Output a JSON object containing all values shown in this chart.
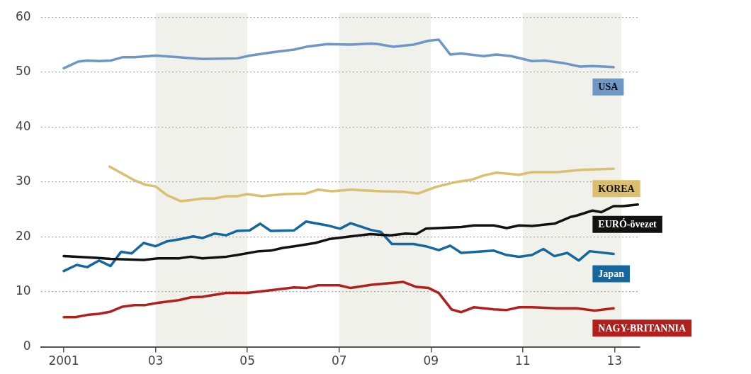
{
  "chart_data": {
    "type": "line",
    "xlim": [
      2000.5,
      2013.55
    ],
    "xticks": [
      2001,
      {
        "value": 2003,
        "label": "03"
      },
      {
        "value": 2005,
        "label": "05"
      },
      {
        "value": 2007,
        "label": "07"
      },
      {
        "value": 2009,
        "label": "09"
      },
      {
        "value": 2011,
        "label": "11"
      },
      {
        "value": 2013,
        "label": "13"
      }
    ],
    "ylim": [
      0,
      60
    ],
    "yticks": [
      0,
      10,
      20,
      30,
      40,
      50,
      60
    ],
    "grid": "y",
    "line_style": "solid",
    "marker": "none",
    "bands": [
      {
        "axis": "x",
        "from": 2003,
        "to": 2005,
        "color": "#f1f1ec"
      },
      {
        "axis": "x",
        "from": 2007,
        "to": 2009,
        "color": "#f1f1ec"
      },
      {
        "axis": "x",
        "from": 2011,
        "to": 2013.15,
        "color": "#f1f1ec"
      }
    ],
    "series": [
      {
        "name": "USA",
        "color": "#6f97c6",
        "x": [
          2001.0,
          2001.31,
          2001.51,
          2001.77,
          2002.02,
          2002.28,
          2002.54,
          2003.0,
          2003.51,
          2004.02,
          2004.78,
          2005.05,
          2005.55,
          2006.02,
          2006.28,
          2006.74,
          2007.25,
          2007.71,
          2007.85,
          2008.18,
          2008.62,
          2008.95,
          2009.17,
          2009.42,
          2009.66,
          2010.15,
          2010.43,
          2010.75,
          2011.2,
          2011.48,
          2011.91,
          2012.25,
          2012.52,
          2012.98
        ],
        "values": [
          50.7,
          51.9,
          52.1,
          52.0,
          52.1,
          52.7,
          52.7,
          53.0,
          52.7,
          52.4,
          52.5,
          53.0,
          53.6,
          54.1,
          54.6,
          55.1,
          55.0,
          55.2,
          55.1,
          54.6,
          55.0,
          55.7,
          55.9,
          53.2,
          53.4,
          52.9,
          53.2,
          52.9,
          52.0,
          52.1,
          51.6,
          51.0,
          51.1,
          50.9
        ]
      },
      {
        "name": "KOREA",
        "color": "#d9bf6e",
        "x": [
          2002.0,
          2002.54,
          2002.78,
          2003.0,
          2003.25,
          2003.55,
          2003.77,
          2004.02,
          2004.28,
          2004.54,
          2004.78,
          2005.0,
          2005.31,
          2005.82,
          2006.28,
          2006.54,
          2006.85,
          2007.25,
          2007.71,
          2007.91,
          2008.4,
          2008.72,
          2009.11,
          2009.55,
          2009.88,
          2010.15,
          2010.43,
          2010.92,
          2011.2,
          2011.75,
          2012.29,
          2012.98
        ],
        "values": [
          32.8,
          30.3,
          29.5,
          29.2,
          27.6,
          26.5,
          26.7,
          27.0,
          27.0,
          27.4,
          27.4,
          27.8,
          27.4,
          27.8,
          27.9,
          28.6,
          28.3,
          28.6,
          28.4,
          28.3,
          28.2,
          27.9,
          29.1,
          30.0,
          30.4,
          31.2,
          31.7,
          31.3,
          31.8,
          31.8,
          32.2,
          32.4
        ]
      },
      {
        "name": "EURÓ-övezet",
        "color": "#111111",
        "x": [
          2001.0,
          2001.71,
          2002.02,
          2002.74,
          2003.05,
          2003.51,
          2003.77,
          2004.02,
          2004.54,
          2004.78,
          2005.25,
          2005.51,
          2005.77,
          2006.02,
          2006.48,
          2006.78,
          2007.25,
          2007.68,
          2008.12,
          2008.45,
          2008.68,
          2008.89,
          2009.66,
          2009.94,
          2010.37,
          2010.65,
          2010.92,
          2011.2,
          2011.69,
          2012.03,
          2012.18,
          2012.52,
          2012.71,
          2012.98,
          2013.18,
          2013.51
        ],
        "values": [
          16.5,
          16.2,
          16.0,
          15.8,
          16.1,
          16.1,
          16.4,
          16.1,
          16.4,
          16.7,
          17.4,
          17.5,
          18.0,
          18.3,
          18.9,
          19.6,
          20.1,
          20.5,
          20.3,
          20.6,
          20.5,
          21.5,
          21.8,
          22.1,
          22.1,
          21.6,
          22.1,
          22.0,
          22.4,
          23.6,
          23.9,
          24.8,
          24.5,
          25.6,
          25.6,
          25.9
        ]
      },
      {
        "name": "Japan",
        "color": "#15679f",
        "x": [
          2001.0,
          2001.28,
          2001.51,
          2001.77,
          2002.02,
          2002.25,
          2002.48,
          2002.74,
          2003.0,
          2003.25,
          2003.55,
          2003.82,
          2004.02,
          2004.28,
          2004.54,
          2004.78,
          2005.05,
          2005.28,
          2005.51,
          2006.02,
          2006.28,
          2006.74,
          2007.02,
          2007.25,
          2007.68,
          2007.91,
          2008.15,
          2008.62,
          2008.89,
          2009.17,
          2009.42,
          2009.66,
          2010.37,
          2010.65,
          2010.92,
          2011.2,
          2011.45,
          2011.69,
          2011.97,
          2012.22,
          2012.46,
          2012.98
        ],
        "values": [
          13.8,
          14.9,
          14.5,
          15.7,
          14.7,
          17.3,
          17.0,
          18.9,
          18.3,
          19.2,
          19.6,
          20.1,
          19.8,
          20.6,
          20.3,
          21.1,
          21.2,
          22.4,
          21.1,
          21.2,
          22.8,
          22.1,
          21.5,
          22.5,
          21.3,
          20.9,
          18.7,
          18.7,
          18.3,
          17.6,
          18.4,
          17.1,
          17.5,
          16.7,
          16.4,
          16.7,
          17.8,
          16.5,
          17.1,
          15.7,
          17.4,
          16.9
        ]
      },
      {
        "name": "NAGY-BRITANNIA",
        "color": "#b2201e",
        "x": [
          2001.0,
          2001.25,
          2001.51,
          2001.77,
          2002.02,
          2002.28,
          2002.54,
          2002.78,
          2003.05,
          2003.51,
          2003.77,
          2004.02,
          2004.54,
          2005.0,
          2005.51,
          2006.02,
          2006.28,
          2006.54,
          2007.0,
          2007.25,
          2007.71,
          2008.4,
          2008.68,
          2008.95,
          2009.17,
          2009.45,
          2009.66,
          2009.94,
          2010.37,
          2010.65,
          2010.92,
          2011.2,
          2011.75,
          2012.18,
          2012.57,
          2012.98
        ],
        "values": [
          5.4,
          5.4,
          5.8,
          6.0,
          6.4,
          7.3,
          7.6,
          7.6,
          8.0,
          8.5,
          9.0,
          9.1,
          9.8,
          9.8,
          10.3,
          10.8,
          10.7,
          11.2,
          11.2,
          10.7,
          11.3,
          11.8,
          10.9,
          10.7,
          9.8,
          6.8,
          6.3,
          7.2,
          6.8,
          6.7,
          7.2,
          7.2,
          7.0,
          7.0,
          6.6,
          7.0
        ]
      }
    ]
  }
}
